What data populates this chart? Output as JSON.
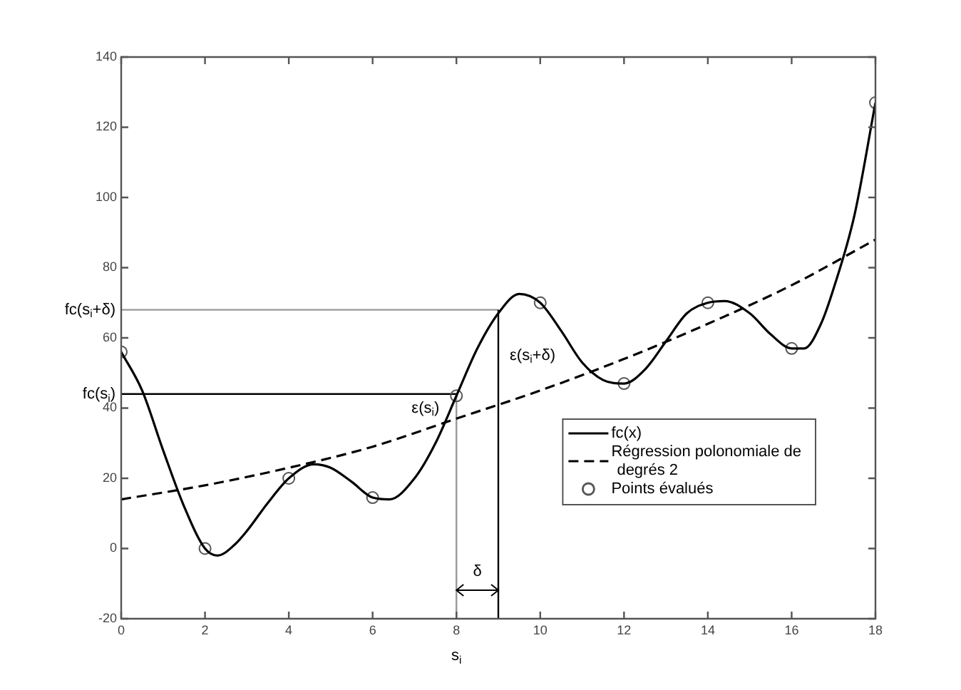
{
  "chart_data": {
    "type": "line",
    "xlabel": "s$_{i}$",
    "xlim": [
      0,
      18
    ],
    "xticks": [
      0,
      2,
      4,
      6,
      8,
      10,
      12,
      14,
      16,
      18
    ],
    "ylim": [
      -20,
      140
    ],
    "yticks": [
      -20,
      0,
      20,
      40,
      60,
      80,
      100,
      120,
      140
    ],
    "grid": false,
    "legend": "bottom right",
    "series": [
      {
        "name": "fc(x)",
        "color": "#000000",
        "line_style": "solid",
        "marker": "none",
        "x": [
          0,
          0.5,
          1,
          1.5,
          2,
          2.3,
          2.7,
          3,
          3.5,
          4,
          4.6,
          5,
          5.5,
          6,
          6.4,
          7,
          7.5,
          8,
          8.5,
          9,
          9.5,
          10,
          10.5,
          11,
          11.5,
          12,
          12.5,
          13,
          13.5,
          14,
          14.4,
          15,
          15.5,
          16,
          16.3,
          16.7,
          17,
          17.5,
          18
        ],
        "values": [
          56,
          45,
          28,
          12,
          0,
          -2,
          1,
          5,
          13,
          20,
          24,
          23,
          19,
          14.5,
          14,
          20,
          30,
          43.5,
          57,
          67,
          72.5,
          70,
          62,
          53,
          48,
          47,
          51,
          59,
          67,
          70,
          70.5,
          67,
          61,
          57,
          57,
          64,
          74,
          95,
          127
        ]
      },
      {
        "name": "Régression polonomiale de degrés 2",
        "color": "#000000",
        "line_style": "dashed",
        "marker": "none",
        "x": [
          0,
          2,
          4,
          6,
          8,
          10,
          12,
          14,
          16,
          18
        ],
        "values": [
          14,
          18,
          23,
          29,
          37,
          45,
          54,
          64,
          75,
          88
        ]
      },
      {
        "name": "Points évalués",
        "type": "scatter",
        "color": "#555555",
        "marker": "circle",
        "x": [
          0,
          2,
          4,
          6,
          8,
          10,
          12,
          14,
          16,
          18
        ],
        "values": [
          56,
          0,
          20,
          14.5,
          43.5,
          70,
          47,
          70,
          57,
          127
        ]
      }
    ],
    "ref_lines": [
      {
        "axis": "y",
        "value": 44,
        "label": "fc(s$_{i}$)",
        "color": "#000000"
      },
      {
        "axis": "y",
        "value": 68,
        "label": "fc(s$_{i}$+δ)",
        "color": "#999999"
      },
      {
        "axis": "x",
        "value": 8,
        "color": "#999999"
      },
      {
        "axis": "x",
        "value": 9,
        "color": "#000000"
      }
    ],
    "annotations": [
      {
        "text": "ε(s$_{i}$)",
        "x": 8,
        "y": 40
      },
      "ε(s$_{i}$+δ)",
      "δ"
    ]
  }
}
